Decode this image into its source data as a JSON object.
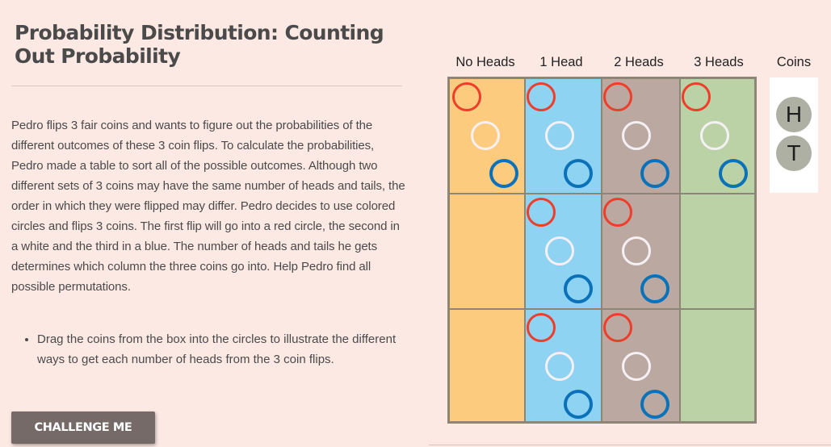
{
  "title": "Probability Distribution: Counting Out Probability",
  "description": "Pedro flips 3 fair coins and wants to figure out the probabilities of the different outcomes of these 3 coin flips. To calculate the probabilities, Pedro made a table to sort all of the possible outcomes. Although two different sets of 3 coins may have the same number of heads and tails, the order in which they were flipped may differ. Pedro decides to use colored circles and flips 3 coins. The first flip will go into a red circle, the second in a white and the third in a blue. The number of heads and tails he gets determines which column the three coins go into. Help Pedro find all possible permutations.",
  "instructions": [
    "Drag the coins from the box into the circles to illustrate the different ways to get each number of heads from the 3 coin flips."
  ],
  "challenge_button": "CHALLENGE ME",
  "table": {
    "columns": [
      {
        "label": "No Heads",
        "color": "#fdcb7e",
        "slot_rows": [
          0
        ]
      },
      {
        "label": "1 Head",
        "color": "#8ed3f2",
        "slot_rows": [
          0,
          1,
          2
        ]
      },
      {
        "label": "2 Heads",
        "color": "#bba9a1",
        "slot_rows": [
          0,
          1,
          2
        ]
      },
      {
        "label": "3 Heads",
        "color": "#bad2a5",
        "slot_rows": [
          0
        ]
      }
    ],
    "rows": 3,
    "slot_colors": {
      "first": "#ee3e2b",
      "second": "#f5f0f4",
      "third": "#0b72b9"
    }
  },
  "coins": {
    "label": "Coins",
    "items": [
      "H",
      "T"
    ]
  }
}
